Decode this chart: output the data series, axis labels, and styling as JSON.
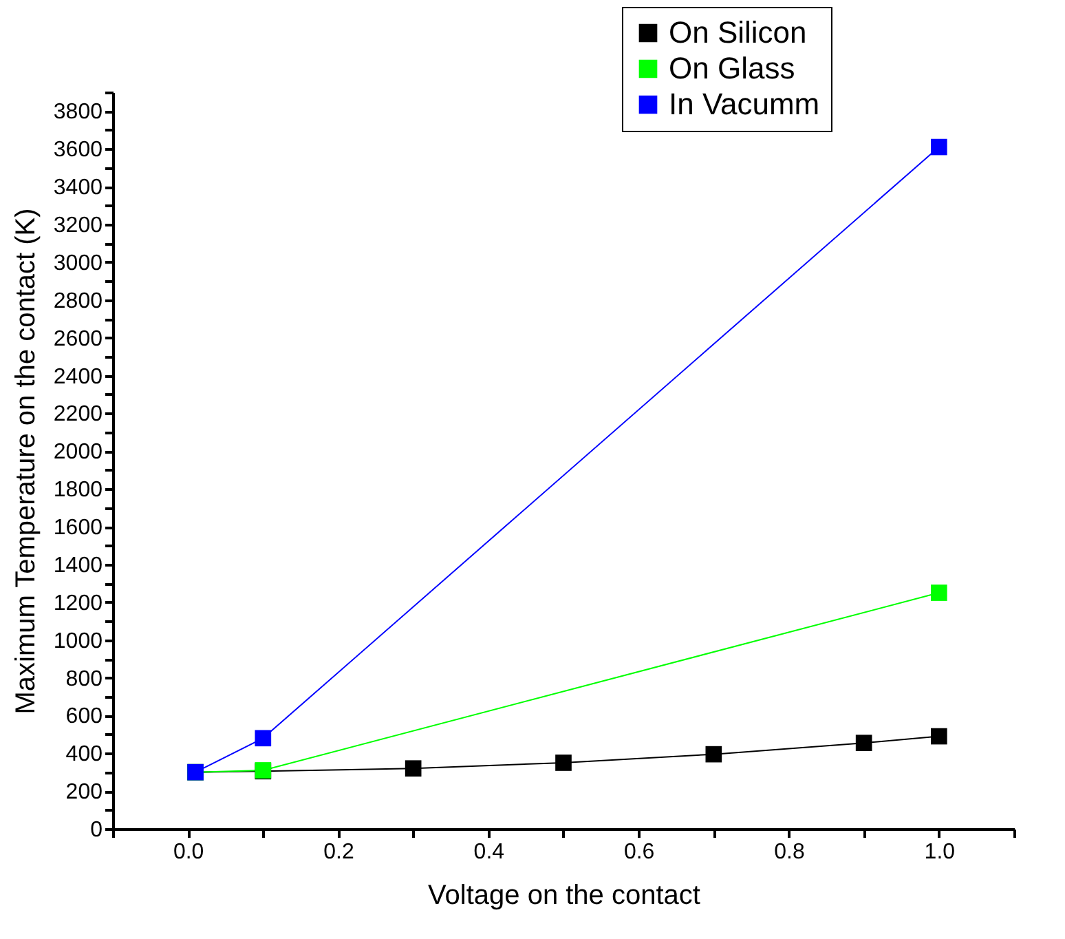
{
  "chart_data": {
    "type": "line",
    "xlabel": "Voltage on the contact",
    "ylabel": "Maximum Temperature on the contact (K)",
    "xlim": [
      -0.1,
      1.1
    ],
    "ylim": [
      0,
      3900
    ],
    "xticks": [
      {
        "value": -0.1,
        "label": null
      },
      {
        "value": 0,
        "label": "0.0"
      },
      {
        "value": 0.1,
        "label": null
      },
      0.2,
      {
        "value": 0.3,
        "label": null
      },
      0.4,
      {
        "value": 0.5,
        "label": null
      },
      0.6,
      {
        "value": 0.7,
        "label": null
      },
      0.8,
      {
        "value": 0.9,
        "label": null
      },
      {
        "value": 1,
        "label": "1.0"
      },
      {
        "value": 1.1,
        "label": null
      }
    ],
    "yticks": [
      0,
      {
        "value": 100,
        "label": null
      },
      200,
      {
        "value": 300,
        "label": null
      },
      400,
      {
        "value": 500,
        "label": null
      },
      600,
      {
        "value": 700,
        "label": null
      },
      800,
      {
        "value": 900,
        "label": null
      },
      1000,
      {
        "value": 1100,
        "label": null
      },
      1200,
      {
        "value": 1300,
        "label": null
      },
      1400,
      {
        "value": 1500,
        "label": null
      },
      1600,
      {
        "value": 1700,
        "label": null
      },
      1800,
      {
        "value": 1900,
        "label": null
      },
      2000,
      {
        "value": 2100,
        "label": null
      },
      2200,
      {
        "value": 2300,
        "label": null
      },
      2400,
      {
        "value": 2500,
        "label": null
      },
      2600,
      {
        "value": 2700,
        "label": null
      },
      2800,
      {
        "value": 2900,
        "label": null
      },
      3000,
      {
        "value": 3100,
        "label": null
      },
      3200,
      {
        "value": 3300,
        "label": null
      },
      3400,
      {
        "value": 3500,
        "label": null
      },
      3600,
      {
        "value": 3700,
        "label": null
      },
      3800,
      {
        "value": 3900,
        "label": null
      }
    ],
    "series": [
      {
        "name": "On Silicon",
        "color": "#000000",
        "x": [
          0.01,
          0.1,
          0.3,
          0.5,
          0.7,
          0.9,
          1.0
        ],
        "values": [
          300,
          305,
          320,
          350,
          395,
          455,
          490
        ]
      },
      {
        "name": "On Glass",
        "color": "#00ff00",
        "x": [
          0.01,
          0.1,
          1.0
        ],
        "values": [
          300,
          310,
          1250
        ]
      },
      {
        "name": "In Vacumm",
        "color": "#0000ff",
        "x": [
          0.01,
          0.1,
          1.0
        ],
        "values": [
          300,
          480,
          3610
        ]
      }
    ],
    "legend": "top right",
    "grid": false,
    "marker": "square",
    "line_style": "solid"
  }
}
